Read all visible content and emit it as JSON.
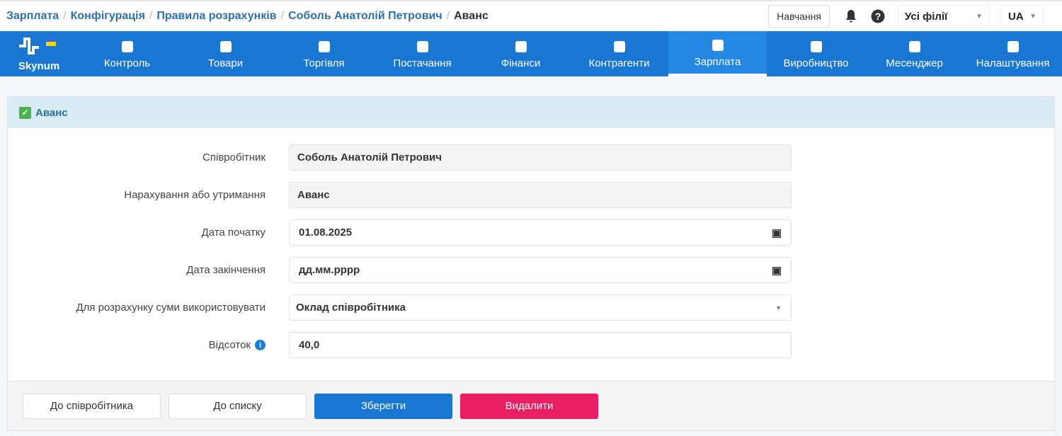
{
  "breadcrumb": [
    "Зарплата",
    "Конфігурація",
    "Правила розрахунків",
    "Соболь Анатолій Петрович"
  ],
  "breadcrumb_current": "Аванс",
  "header": {
    "learn": "Навчання",
    "branch": "Усі філії",
    "lang": "UA"
  },
  "nav": {
    "logo": "Skynum",
    "items": [
      "Контроль",
      "Товари",
      "Торгівля",
      "Постачання",
      "Фінанси",
      "Контрагенти",
      "Зарплата",
      "Виробництво",
      "Месенджер",
      "Налаштування"
    ],
    "active": "Зарплата"
  },
  "card": {
    "title": "Аванс"
  },
  "form": {
    "employee_label": "Співробітник",
    "employee": "Соболь Анатолій Петрович",
    "accrual_label": "Нарахування або утримання",
    "accrual": "Аванс",
    "start_label": "Дата початку",
    "start": "01.08.2025",
    "end_label": "Дата закінчення",
    "end": "дд.мм.рррр",
    "base_label": "Для розрахунку суми використовувати",
    "base": "Оклад співробітника",
    "percent_label": "Відсоток",
    "percent": "40,0"
  },
  "buttons": {
    "to_employee": "До співробітника",
    "to_list": "До списку",
    "save": "Зберегти",
    "delete": "Видалити"
  },
  "colors": {
    "nav": "#1976d2",
    "save": "#1976d2",
    "delete": "#e91e63"
  }
}
